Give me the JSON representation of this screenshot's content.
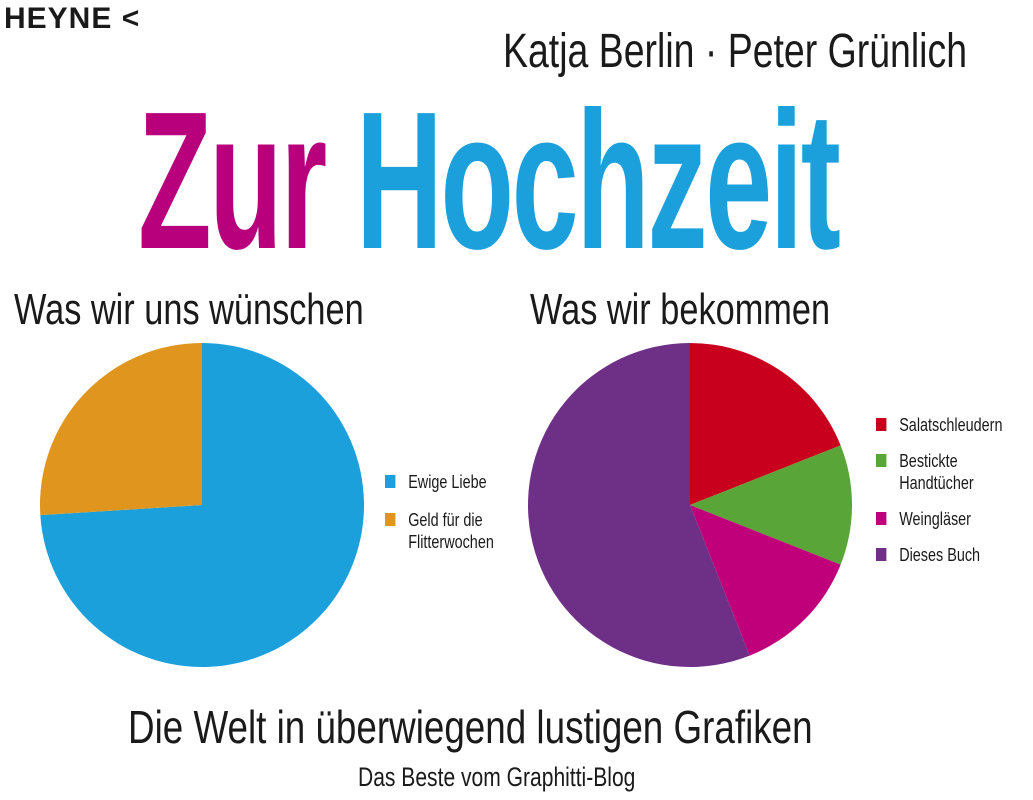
{
  "cover": {
    "publisher": "HEYNE",
    "publisher_mark": "<",
    "authors": "Katja Berlin · Peter Grünlich",
    "title_part1": "Zur",
    "title_part2": "Hochzeit",
    "subtitle": "Die Welt in überwiegend lustigen Grafiken",
    "tagline": "Das Beste vom Graphitti-Blog",
    "colors": {
      "title_part1": "#b8007c",
      "title_part2": "#1ba0dc"
    }
  },
  "chart_data": [
    {
      "type": "pie",
      "title": "Was wir uns wünschen",
      "start": "12 o'clock, clockwise",
      "legend_position": "right",
      "slices": [
        {
          "label": "Ewige Liebe",
          "value": 74,
          "color": "#1ba0dc"
        },
        {
          "label": "Geld für die\nFlitterwochen",
          "value": 26,
          "color": "#e0961e"
        }
      ]
    },
    {
      "type": "pie",
      "title": "Was wir bekommen",
      "start": "12 o'clock, clockwise",
      "legend_position": "right",
      "slices": [
        {
          "label": "Salatschleudern",
          "value": 19,
          "color": "#c8001e"
        },
        {
          "label": "Bestickte\nHandtücher",
          "value": 12,
          "color": "#5aa537"
        },
        {
          "label": "Weingläser",
          "value": 13,
          "color": "#c0007a"
        },
        {
          "label": "Dieses Buch",
          "value": 56,
          "color": "#6e3087"
        }
      ]
    }
  ]
}
